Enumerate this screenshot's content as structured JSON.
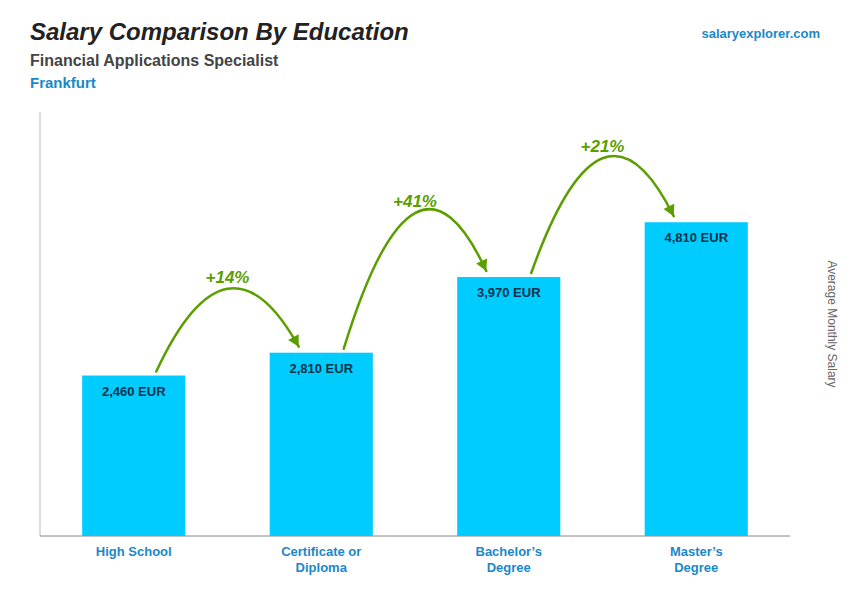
{
  "chart_data": {
    "type": "bar",
    "title": "Salary Comparison By Education",
    "subtitle": [
      "Financial Applications Specialist",
      "Frankfurt"
    ],
    "source": "salaryexplorer.com",
    "ylabel": "Average Monthly Salary",
    "categories": [
      "High School",
      "Certificate or\nDiploma",
      "Bachelor’s\nDegree",
      "Master’s\nDegree"
    ],
    "values": [
      2460,
      2810,
      3970,
      4810
    ],
    "value_labels": [
      "2,460 EUR",
      "2,810 EUR",
      "3,970 EUR",
      "4,810 EUR"
    ],
    "data_labels": true,
    "annotations": [
      "+14%",
      "+41%",
      "+21%"
    ],
    "color": "#00ccff",
    "ylim": [
      0,
      6500
    ],
    "tick_labels": "x"
  }
}
